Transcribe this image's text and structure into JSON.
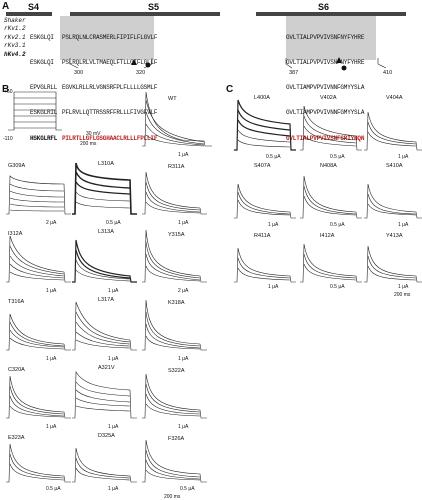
{
  "panels": {
    "a": "A",
    "b": "B",
    "c": "C"
  },
  "segments": {
    "s4": "S4",
    "s5": "S5",
    "s6": "S6"
  },
  "sequence_names": [
    "Shaker",
    "rKv1.2",
    "rKv2.1",
    "rKv3.1",
    "hKv4.2"
  ],
  "seq_s4": [
    "ESKGLQI",
    "ESKGLQI",
    "EPVGLRLL",
    "ESKGLRIL",
    "HSKGLRFL"
  ],
  "seq_s5": [
    "PSLRQLNLCRASMERLFIPIFLFLGVLF",
    "PSLRQLRLVLTMAEQLFTLLGIFLGLLF",
    "EGVKLRLLRLVGNSRFPLFLLLLGSMLF",
    "PFLRVLLQTTRSSRFFRLLLFIVGFVLF",
    "PILRTLLGFLGSGHAACLRLLLFPLLIF"
  ],
  "seq_s6": [
    "GVLTIALPVPVIVSNFNYFYHRE",
    "GVLTIALPVPVIVSNFNYFYHRE",
    "GVLTIAMPVPVIVNNFGMYYSLA",
    "GVLTIAMPVPVIVNNFGMYYSLA",
    "GVLTIALPVPVIVSNFSRIYHQN"
  ],
  "position_labels": [
    "300",
    "320",
    "387",
    "410"
  ],
  "panel_b_labels": [
    "+60",
    "-110",
    "WT",
    "G309A",
    "L310A",
    "R311A",
    "I312A",
    "L313A",
    "Y315A",
    "T316A",
    "L317A",
    "K318A",
    "C320A",
    "A321V",
    "S322A",
    "E323A",
    "D325A",
    "F326A"
  ],
  "panel_b_scales": [
    "30 mV",
    "200 ms",
    "1 μA",
    "2 μA",
    "0.5 μA",
    "1 μA",
    "1 μA",
    "1 μA",
    "2 μA",
    "1 μA",
    "1 μA",
    "1 μA",
    "1 μA",
    "1 μA",
    "1 μA",
    "0.5 μA",
    "1 μA",
    "0.5 μA",
    "200 ms"
  ],
  "panel_c_labels": [
    "L400A",
    "V402A",
    "V404A",
    "S407A",
    "N408A",
    "S410A",
    "R411A",
    "I412A",
    "Y413A"
  ],
  "panel_c_scales": [
    "0.5 μA",
    "0.5 μA",
    "1 μA",
    "1 μA",
    "0.5 μA",
    "1 μA",
    "1 μA",
    "0.5 μA",
    "1 μA",
    "200 ms"
  ]
}
